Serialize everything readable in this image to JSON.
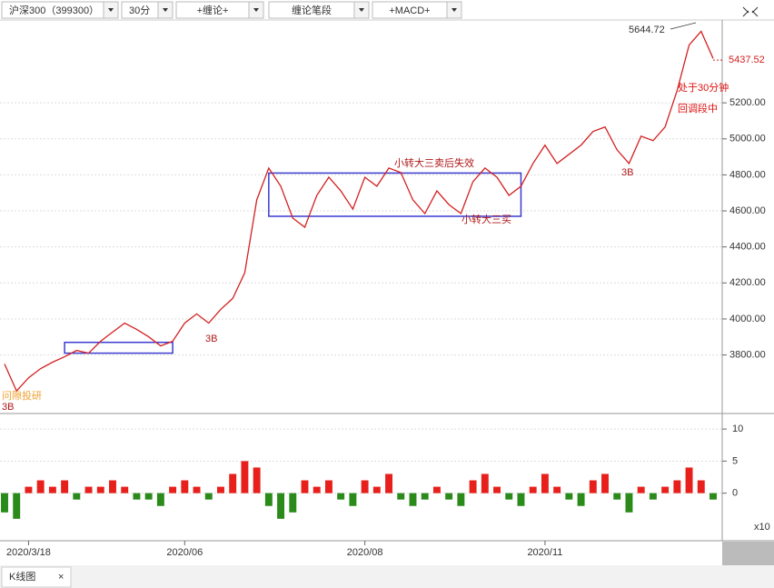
{
  "toolbar": [
    "沪深300（399300）",
    "30分",
    "+缠论+",
    "缠论笔段",
    "+MACD+"
  ],
  "tabs": [
    "K线图"
  ],
  "chart_data": [
    {
      "type": "line",
      "color": "#d42020",
      "categories": [
        null,
        null,
        "2020/3/18",
        null,
        null,
        null,
        null,
        null,
        null,
        null,
        null,
        null,
        null,
        null,
        null,
        "2020/06",
        null,
        null,
        null,
        null,
        null,
        null,
        null,
        null,
        null,
        null,
        null,
        null,
        null,
        null,
        "2020/08",
        null,
        null,
        null,
        null,
        null,
        null,
        null,
        null,
        null,
        null,
        null,
        null,
        null,
        null,
        "2020/11",
        null,
        null,
        null,
        null,
        null,
        null,
        null,
        null,
        null,
        null,
        null,
        null,
        null,
        null
      ],
      "values": [
        3750,
        3600,
        3673,
        3724,
        3760,
        3790,
        3825,
        3810,
        3876,
        3927,
        3977,
        3942,
        3901,
        3850,
        3876,
        3977,
        4028,
        3977,
        4053,
        4114,
        4256,
        4661,
        4838,
        4737,
        4560,
        4509,
        4686,
        4787,
        4711,
        4610,
        4787,
        4737,
        4838,
        4813,
        4661,
        4585,
        4711,
        4635,
        4585,
        4762,
        4838,
        4787,
        4686,
        4737,
        4863,
        4965,
        4863,
        4914,
        4965,
        5041,
        5066,
        4939,
        4863,
        5015,
        4990,
        5066,
        5268,
        5521,
        5597,
        5446
      ],
      "ylim": [
        3490,
        5660
      ],
      "yticks": [
        {
          "value": 3800,
          "label": "3800.00"
        },
        {
          "value": 4000,
          "label": "4000.00"
        },
        {
          "value": 4200,
          "label": "4200.00"
        },
        {
          "value": 4400,
          "label": "4400.00"
        },
        {
          "value": 4600,
          "label": "4600.00"
        },
        {
          "value": 4800,
          "label": "4800.00"
        },
        {
          "value": 5000,
          "label": "5000.00"
        },
        {
          "value": 5200,
          "label": "5200.00"
        }
      ],
      "grid": true,
      "zones": [
        {
          "start": 5,
          "end": 14,
          "low": 3810,
          "high": 3870
        },
        {
          "start": 22,
          "end": 43,
          "low": 4570,
          "high": 4810
        }
      ],
      "high": 5644.72,
      "last": 5437.52,
      "annotations": [
        "小转大三卖后失效",
        "小转大三买",
        "3B",
        "3B",
        "3B",
        "处于30分钟",
        "回调段中",
        "问隙投研"
      ]
    },
    {
      "type": "bar",
      "unit": "x10",
      "values": [
        -3,
        -4,
        1,
        2,
        1,
        2,
        -1,
        1,
        1,
        2,
        1,
        -1,
        -1,
        -2,
        1,
        2,
        1,
        -1,
        1,
        3,
        5,
        4,
        -2,
        -4,
        -3,
        2,
        1,
        2,
        -1,
        -2,
        2,
        1,
        3,
        -1,
        -2,
        -1,
        1,
        -1,
        -2,
        2,
        3,
        1,
        -1,
        -2,
        1,
        3,
        1,
        -1,
        -2,
        2,
        3,
        -1,
        -3,
        1,
        -1,
        1,
        2,
        4,
        2,
        -1
      ],
      "ylim": [
        -7,
        12
      ],
      "yticks": [
        0,
        5,
        10
      ]
    }
  ]
}
